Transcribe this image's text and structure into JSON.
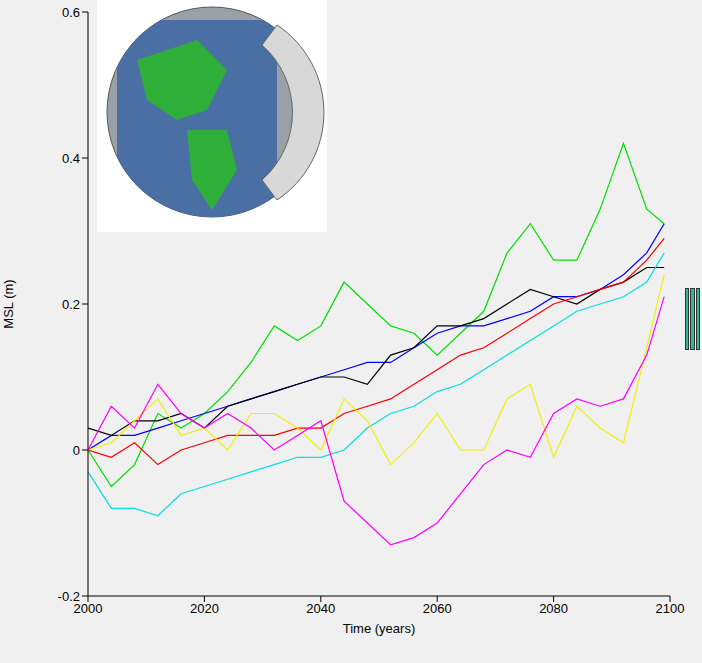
{
  "chart_data": {
    "type": "line",
    "x_label": "Time (years)",
    "y_label": "MSL (m)",
    "x": [
      2000,
      2004,
      2008,
      2012,
      2016,
      2020,
      2024,
      2028,
      2032,
      2036,
      2040,
      2044,
      2048,
      2052,
      2056,
      2060,
      2064,
      2068,
      2072,
      2076,
      2080,
      2084,
      2088,
      2092,
      2096,
      2099
    ],
    "xlim": [
      2000,
      2100
    ],
    "xticks": [
      2000,
      2020,
      2040,
      2060,
      2080,
      2100
    ],
    "ylim": [
      -0.2,
      0.6
    ],
    "yticks": [
      -0.2,
      0,
      0.2,
      0.4,
      0.6
    ],
    "grid": false,
    "series": [
      {
        "color": "#00e000",
        "values": [
          0,
          -0.05,
          -0.02,
          0.05,
          0.03,
          0.05,
          0.08,
          0.12,
          0.17,
          0.15,
          0.17,
          0.23,
          0.2,
          0.17,
          0.16,
          0.13,
          0.16,
          0.19,
          0.27,
          0.31,
          0.26,
          0.26,
          0.33,
          0.42,
          0.33,
          0.31
        ]
      },
      {
        "color": "#0000ff",
        "values": [
          0,
          0.02,
          0.02,
          0.03,
          0.04,
          0.05,
          0.06,
          0.07,
          0.08,
          0.09,
          0.1,
          0.11,
          0.12,
          0.12,
          0.14,
          0.16,
          0.17,
          0.17,
          0.18,
          0.19,
          0.21,
          0.21,
          0.22,
          0.24,
          0.27,
          0.31
        ]
      },
      {
        "color": "#000000",
        "values": [
          0.03,
          0.02,
          0.04,
          0.04,
          0.05,
          0.03,
          0.06,
          0.07,
          0.08,
          0.09,
          0.1,
          0.1,
          0.09,
          0.13,
          0.14,
          0.17,
          0.17,
          0.18,
          0.2,
          0.22,
          0.21,
          0.2,
          0.22,
          0.23,
          0.25,
          0.25
        ]
      },
      {
        "color": "#ff0000",
        "values": [
          0,
          -0.01,
          0.01,
          -0.02,
          0,
          0.01,
          0.02,
          0.02,
          0.02,
          0.03,
          0.03,
          0.05,
          0.06,
          0.07,
          0.09,
          0.11,
          0.13,
          0.14,
          0.16,
          0.18,
          0.2,
          0.21,
          0.22,
          0.23,
          0.26,
          0.29
        ]
      },
      {
        "color": "#00e0e0",
        "values": [
          -0.03,
          -0.08,
          -0.08,
          -0.09,
          -0.06,
          -0.05,
          -0.04,
          -0.03,
          -0.02,
          -0.01,
          -0.01,
          0,
          0.03,
          0.05,
          0.06,
          0.08,
          0.09,
          0.11,
          0.13,
          0.15,
          0.17,
          0.19,
          0.2,
          0.21,
          0.23,
          0.27
        ]
      },
      {
        "color": "#f0f000",
        "values": [
          0,
          0.01,
          0.04,
          0.07,
          0.02,
          0.03,
          0,
          0.05,
          0.05,
          0.03,
          0,
          0.07,
          0.04,
          -0.02,
          0.01,
          0.05,
          0,
          0,
          0.07,
          0.09,
          -0.01,
          0.06,
          0.03,
          0.01,
          0.14,
          0.24
        ]
      },
      {
        "color": "#ff00ff",
        "values": [
          0,
          0.06,
          0.03,
          0.09,
          0.05,
          0.03,
          0.05,
          0.03,
          0,
          0.02,
          0.04,
          -0.07,
          -0.1,
          -0.13,
          -0.12,
          -0.1,
          -0.06,
          -0.02,
          0,
          -0.01,
          0.05,
          0.07,
          0.06,
          0.07,
          0.13,
          0.21
        ]
      }
    ]
  }
}
